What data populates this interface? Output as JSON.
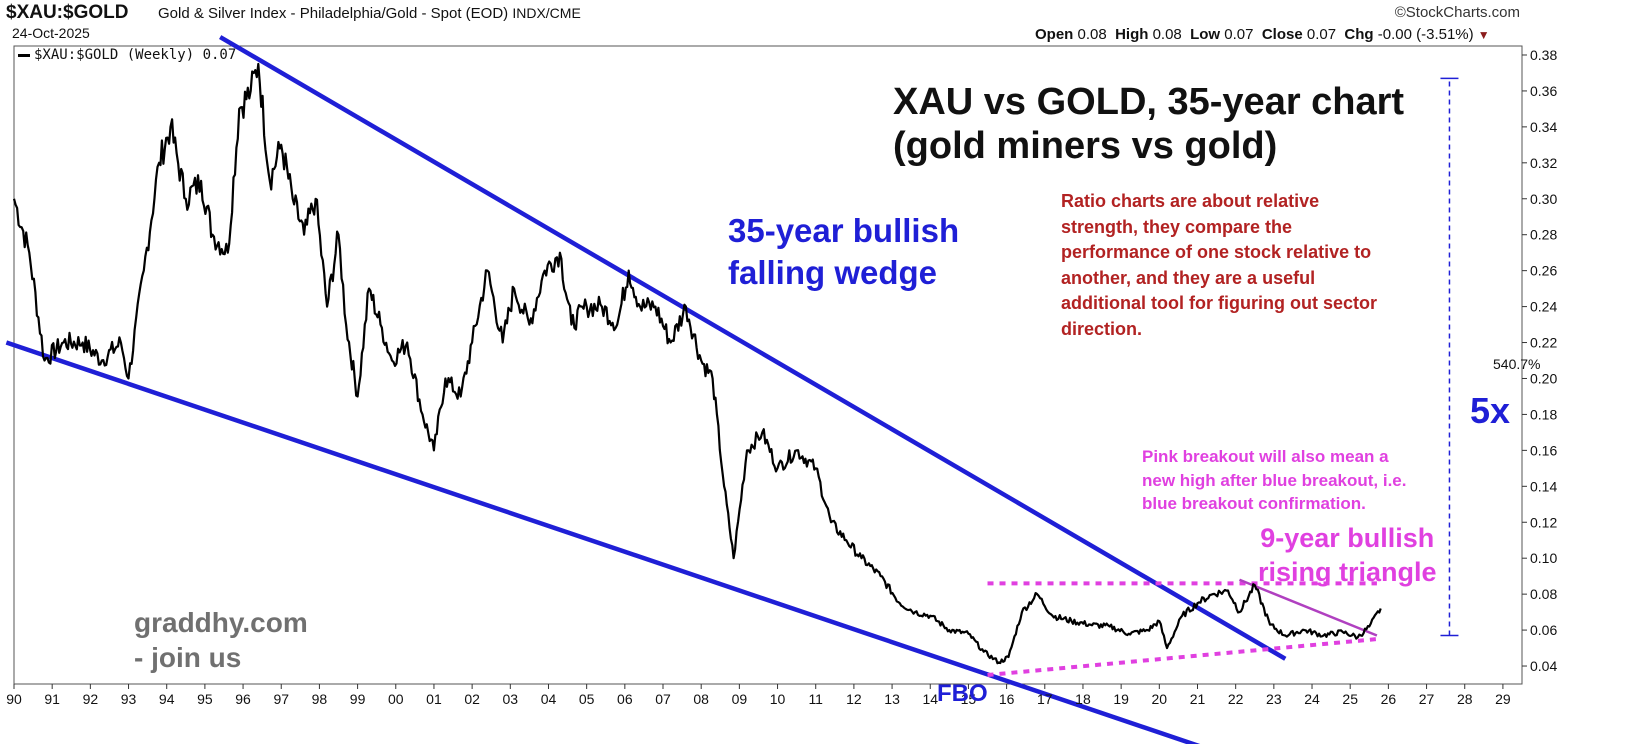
{
  "header": {
    "symbol": "$XAU:$GOLD",
    "description": "Gold & Silver Index - Philadelphia/Gold - Spot (EOD)",
    "exchange": "INDX/CME",
    "date": "24-Oct-2025",
    "brand": "©StockCharts.com",
    "ohlc": {
      "open_label": "Open",
      "open": "0.08",
      "high_label": "High",
      "high": "0.08",
      "low_label": "Low",
      "low": "0.07",
      "close_label": "Close",
      "close": "0.07",
      "chg_label": "Chg",
      "chg": "-0.00 (-3.51%)"
    }
  },
  "legend": {
    "label": "$XAU:$GOLD (Weekly) 0.07"
  },
  "annotations": {
    "title_line1": "XAU vs GOLD, 35-year chart",
    "title_line2": "(gold miners vs gold)",
    "wedge_line1": "35-year bullish",
    "wedge_line2": "falling wedge",
    "ratio_note": [
      "Ratio charts are about relative",
      "strength, they compare the",
      "performance of one stock relative to",
      "another, and they are a useful",
      "additional tool for figuring out sector",
      "direction."
    ],
    "pink_note": [
      "Pink breakout will also mean a",
      "new high after blue breakout, i.e.",
      "blue breakout confirmation."
    ],
    "triangle_line1": "9-year bullish",
    "triangle_line2": "rising triangle",
    "fbo": "FBO",
    "site_line1": "graddhy.com",
    "site_line2": "- join us",
    "percent": "540.7%",
    "multiple": "5x"
  },
  "colors": {
    "blue": "#1f1fd6",
    "pink": "#e040e0",
    "purple": "#b040c0",
    "red_note": "#b22222",
    "gray_site": "#707070",
    "series": "#000000"
  },
  "chart_data": {
    "type": "line",
    "title": "XAU vs GOLD, 35-year chart",
    "series": [
      {
        "name": "$XAU:$GOLD (Weekly)",
        "x": [
          1990.0,
          1990.4,
          1990.8,
          1991.3,
          1991.8,
          1992.3,
          1992.8,
          1993.0,
          1993.4,
          1993.8,
          1994.1,
          1994.5,
          1994.9,
          1995.2,
          1995.6,
          1995.9,
          1996.2,
          1996.4,
          1996.7,
          1997.0,
          1997.3,
          1997.6,
          1997.9,
          1998.2,
          1998.5,
          1998.7,
          1999.0,
          1999.3,
          1999.6,
          1999.9,
          2000.3,
          2000.7,
          2001.0,
          2001.3,
          2001.7,
          2002.0,
          2002.4,
          2002.8,
          2003.1,
          2003.5,
          2003.9,
          2004.3,
          2004.6,
          2005.0,
          2005.4,
          2005.8,
          2006.1,
          2006.4,
          2006.8,
          2007.2,
          2007.6,
          2008.0,
          2008.3,
          2008.6,
          2008.85,
          2009.2,
          2009.6,
          2010.0,
          2010.5,
          2011.0,
          2011.4,
          2011.8,
          2012.2,
          2012.7,
          2013.2,
          2013.6,
          2014.0,
          2014.5,
          2015.0,
          2015.4,
          2015.8,
          2016.05,
          2016.4,
          2016.8,
          2017.2,
          2017.7,
          2018.2,
          2018.7,
          2019.2,
          2019.7,
          2020.0,
          2020.2,
          2020.6,
          2021.0,
          2021.4,
          2021.8,
          2022.1,
          2022.5,
          2022.9,
          2023.3,
          2023.8,
          2024.3,
          2024.8,
          2025.2,
          2025.5,
          2025.8
        ],
        "values": [
          0.3,
          0.27,
          0.21,
          0.22,
          0.22,
          0.21,
          0.22,
          0.2,
          0.26,
          0.32,
          0.34,
          0.3,
          0.31,
          0.28,
          0.27,
          0.35,
          0.36,
          0.375,
          0.31,
          0.33,
          0.3,
          0.28,
          0.3,
          0.24,
          0.28,
          0.23,
          0.19,
          0.25,
          0.23,
          0.21,
          0.22,
          0.18,
          0.16,
          0.2,
          0.19,
          0.22,
          0.26,
          0.22,
          0.25,
          0.23,
          0.26,
          0.27,
          0.23,
          0.24,
          0.24,
          0.23,
          0.26,
          0.24,
          0.24,
          0.22,
          0.24,
          0.21,
          0.2,
          0.14,
          0.1,
          0.16,
          0.17,
          0.15,
          0.16,
          0.15,
          0.12,
          0.11,
          0.1,
          0.09,
          0.075,
          0.07,
          0.068,
          0.06,
          0.058,
          0.048,
          0.042,
          0.045,
          0.07,
          0.08,
          0.068,
          0.065,
          0.063,
          0.062,
          0.058,
          0.06,
          0.065,
          0.05,
          0.068,
          0.075,
          0.08,
          0.082,
          0.07,
          0.085,
          0.063,
          0.057,
          0.06,
          0.057,
          0.059,
          0.056,
          0.062,
          0.072
        ]
      }
    ],
    "x_ticks": [
      "90",
      "91",
      "92",
      "93",
      "94",
      "95",
      "96",
      "97",
      "98",
      "99",
      "00",
      "01",
      "02",
      "03",
      "04",
      "05",
      "06",
      "07",
      "08",
      "09",
      "10",
      "11",
      "12",
      "13",
      "14",
      "15",
      "16",
      "17",
      "18",
      "19",
      "20",
      "21",
      "22",
      "23",
      "24",
      "25",
      "26",
      "27",
      "28",
      "29"
    ],
    "y_ticks": [
      "0.04",
      "0.06",
      "0.08",
      "0.10",
      "0.12",
      "0.14",
      "0.16",
      "0.18",
      "0.20",
      "0.22",
      "0.24",
      "0.26",
      "0.28",
      "0.30",
      "0.32",
      "0.34",
      "0.36",
      "0.38"
    ],
    "xlim": [
      1990,
      2029.5
    ],
    "ylim": [
      0.03,
      0.385
    ],
    "grid": false,
    "legend": "top-left",
    "trendlines": [
      {
        "name": "wedge-upper",
        "color": "blue",
        "x": [
          1995.4,
          2023.3
        ],
        "y": [
          0.39,
          0.044
        ]
      },
      {
        "name": "wedge-lower",
        "color": "blue",
        "x": [
          1989.8,
          2023.2
        ],
        "y": [
          0.22,
          -0.02
        ]
      },
      {
        "name": "triangle-top",
        "color": "pink",
        "x": [
          2015.5,
          2025.7
        ],
        "y": [
          0.086,
          0.086
        ]
      },
      {
        "name": "triangle-bottom",
        "color": "pink",
        "x": [
          2015.5,
          2025.7
        ],
        "y": [
          0.035,
          0.055
        ]
      },
      {
        "name": "purple-resistance",
        "color": "purple",
        "x": [
          2022.1,
          2025.7
        ],
        "y": [
          0.088,
          0.057
        ]
      }
    ],
    "measure": {
      "x": 2027.6,
      "y": [
        0.057,
        0.367
      ],
      "label": "540.7%"
    }
  }
}
